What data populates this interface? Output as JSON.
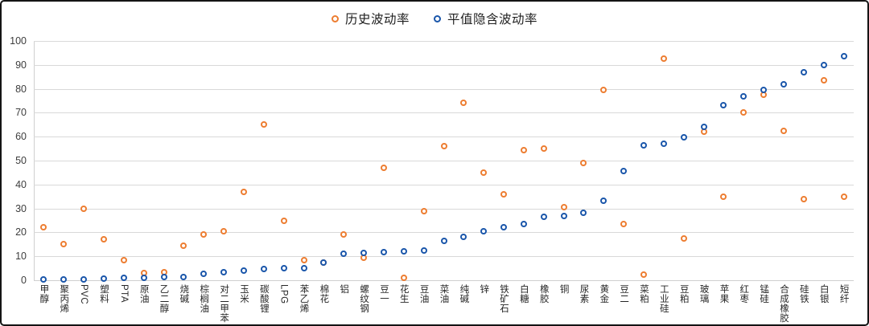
{
  "chart_data": {
    "type": "scatter",
    "title": "",
    "legend_position": "top-center",
    "grid": true,
    "ylim": [
      0,
      100
    ],
    "yticks": [
      0,
      10,
      20,
      30,
      40,
      50,
      60,
      70,
      80,
      90,
      100
    ],
    "categories": [
      "甲醇",
      "聚丙烯",
      "PVC",
      "塑料",
      "PTA",
      "原油",
      "乙二醇",
      "烧碱",
      "棕榈油",
      "对二甲苯",
      "玉米",
      "碳酸锂",
      "LPG",
      "苯乙烯",
      "棉花",
      "铝",
      "螺纹钢",
      "豆一",
      "花生",
      "豆油",
      "菜油",
      "纯碱",
      "锌",
      "铁矿石",
      "白糖",
      "橡胶",
      "铜",
      "尿素",
      "黄金",
      "豆二",
      "菜粕",
      "工业硅",
      "豆粕",
      "玻璃",
      "苹果",
      "红枣",
      "锰硅",
      "合成橡胶",
      "硅铁",
      "白银",
      "短纤"
    ],
    "series": [
      {
        "name": "历史波动率",
        "marker": "hollow-circle",
        "color": "#ED7D31",
        "values": [
          22,
          15,
          30,
          17,
          8.5,
          3,
          3.5,
          14.5,
          19,
          20.5,
          37,
          65,
          25,
          8.5,
          7.5,
          19,
          9.5,
          47,
          1,
          29,
          56,
          74,
          45,
          36,
          54.5,
          55,
          30.5,
          49,
          79.5,
          23.5,
          2.2,
          92.5,
          17.5,
          62,
          35,
          70,
          77.5,
          62.5,
          34,
          83.5,
          35
        ]
      },
      {
        "name": "平值隐含波动率",
        "marker": "hollow-circle",
        "color": "#1A56AA",
        "values": [
          0.3,
          0.2,
          0.3,
          0.8,
          1,
          1,
          1.2,
          1.5,
          2.8,
          3.4,
          3.9,
          4.8,
          5.1,
          5.2,
          7.3,
          11,
          11.4,
          11.8,
          12,
          12.3,
          16.3,
          18.2,
          20.4,
          22.1,
          23.4,
          26.5,
          26.8,
          28.1,
          33.3,
          45.5,
          56.3,
          57,
          59.6,
          64,
          73,
          77,
          79.5,
          82,
          87,
          90,
          93.5
        ]
      }
    ]
  }
}
